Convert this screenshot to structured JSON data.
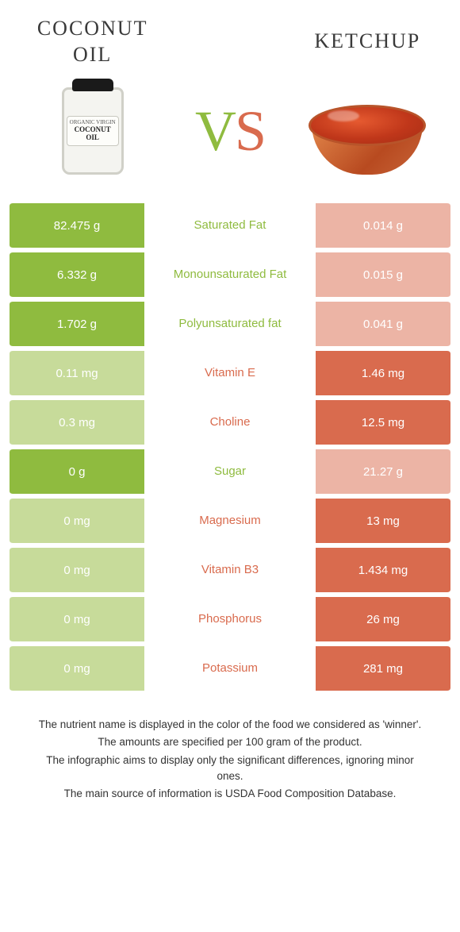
{
  "colors": {
    "left_food": "#8fbb3f",
    "right_food": "#d96b4e",
    "left_dim": "#c7db9a",
    "right_dim": "#ecb4a5",
    "title_text": "#3a3a3a"
  },
  "foods": {
    "left": {
      "title": "COCONUT\nOIL",
      "jar_small1": "ORGANIC VIRGIN",
      "jar_big": "COCONUT OIL"
    },
    "right": {
      "title": "KETCHUP"
    }
  },
  "vs": {
    "v": "V",
    "s": "S"
  },
  "rows": [
    {
      "label": "Saturated Fat",
      "left": "82.475 g",
      "right": "0.014 g",
      "winner": "left"
    },
    {
      "label": "Monounsaturated Fat",
      "left": "6.332 g",
      "right": "0.015 g",
      "winner": "left"
    },
    {
      "label": "Polyunsaturated fat",
      "left": "1.702 g",
      "right": "0.041 g",
      "winner": "left"
    },
    {
      "label": "Vitamin E",
      "left": "0.11 mg",
      "right": "1.46 mg",
      "winner": "right"
    },
    {
      "label": "Choline",
      "left": "0.3 mg",
      "right": "12.5 mg",
      "winner": "right"
    },
    {
      "label": "Sugar",
      "left": "0 g",
      "right": "21.27 g",
      "winner": "left"
    },
    {
      "label": "Magnesium",
      "left": "0 mg",
      "right": "13 mg",
      "winner": "right"
    },
    {
      "label": "Vitamin B3",
      "left": "0 mg",
      "right": "1.434 mg",
      "winner": "right"
    },
    {
      "label": "Phosphorus",
      "left": "0 mg",
      "right": "26 mg",
      "winner": "right"
    },
    {
      "label": "Potassium",
      "left": "0 mg",
      "right": "281 mg",
      "winner": "right"
    }
  ],
  "footer": [
    "The nutrient name is displayed in the color of the food we considered as 'winner'.",
    "The amounts are specified per 100 gram of the product.",
    "The infographic aims to display only the significant differences, ignoring minor ones.",
    "The main source of information is USDA Food Composition Database."
  ]
}
